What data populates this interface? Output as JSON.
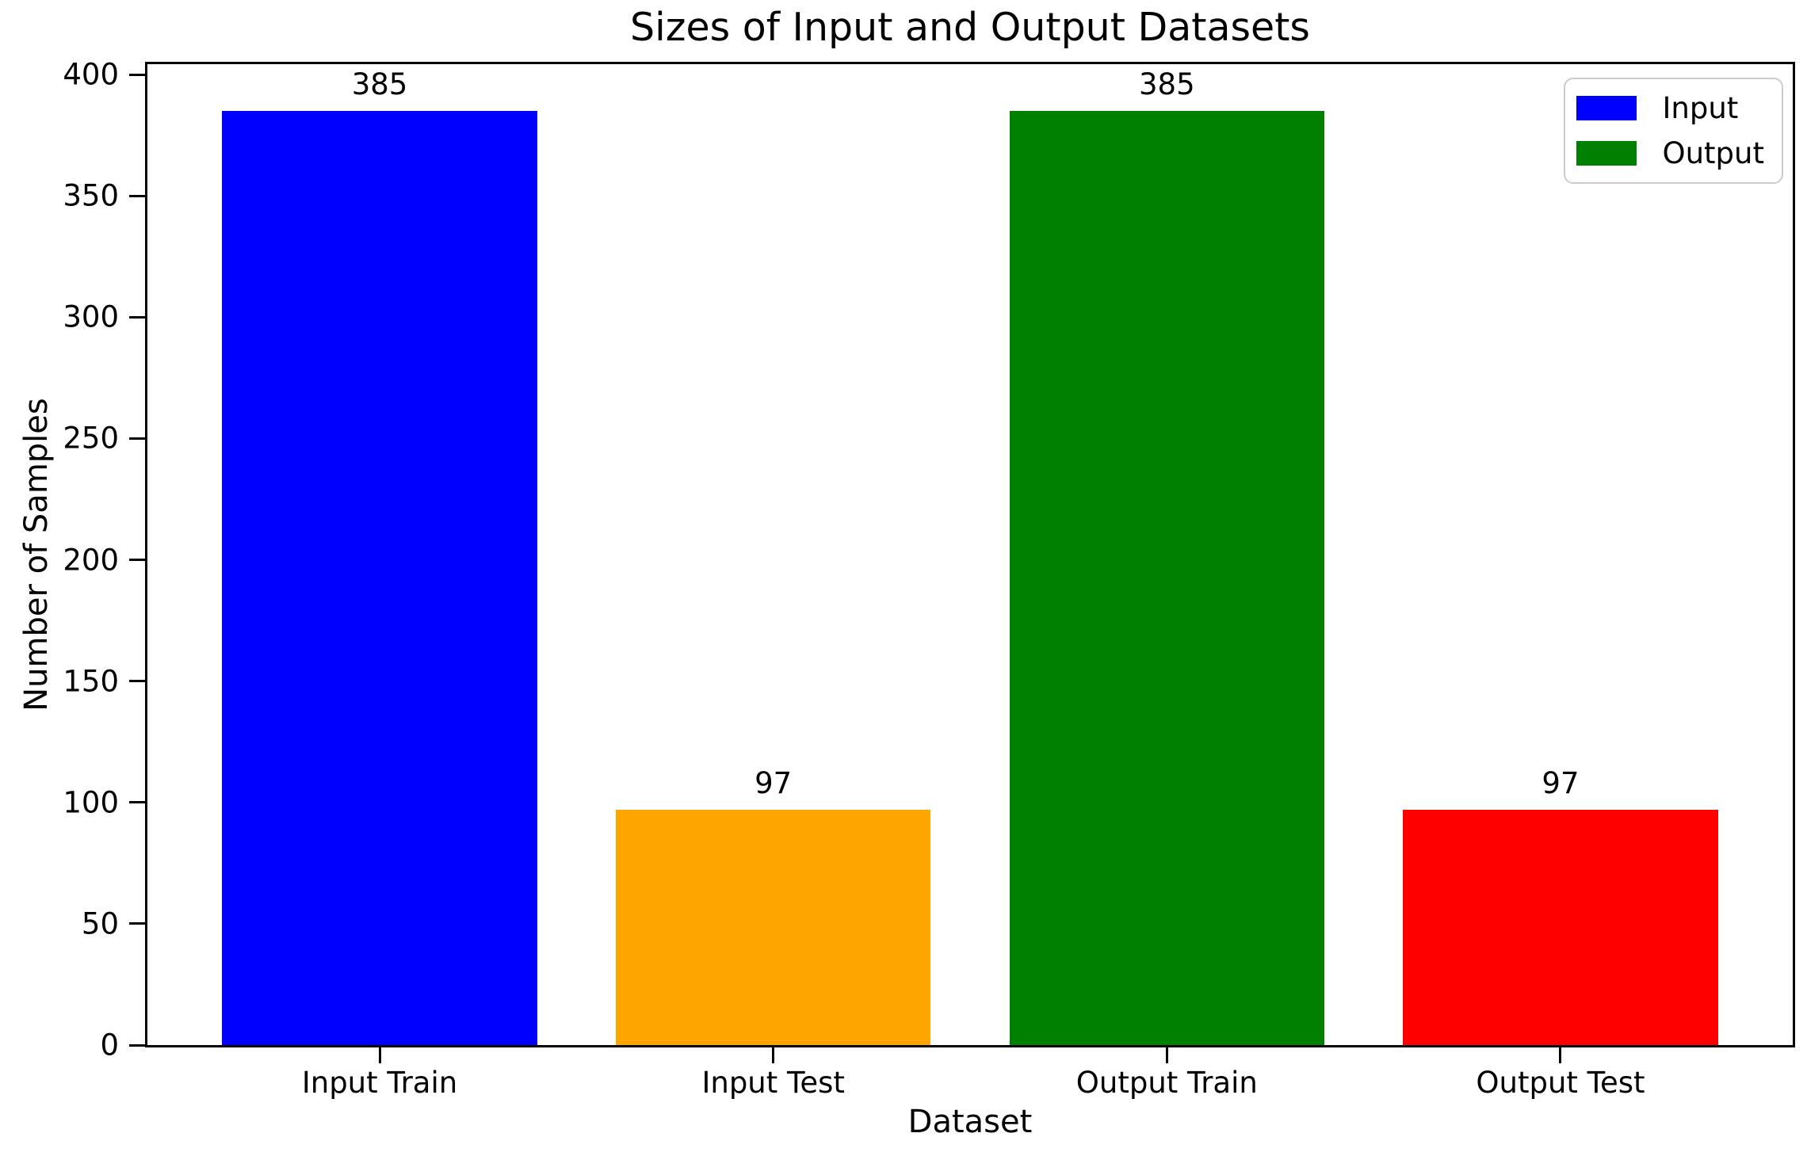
{
  "chart_data": {
    "type": "bar",
    "title": "Sizes of Input and Output Datasets",
    "xlabel": "Dataset",
    "ylabel": "Number of Samples",
    "categories": [
      "Input Train",
      "Input Test",
      "Output Train",
      "Output Test"
    ],
    "values": [
      385,
      97,
      385,
      97
    ],
    "bar_value_labels": [
      "385",
      "97",
      "385",
      "97"
    ],
    "bar_colors": [
      "#0000ff",
      "#ffa500",
      "#008000",
      "#ff0000"
    ],
    "ylim": [
      0,
      404.25
    ],
    "yticks": [
      0,
      50,
      100,
      150,
      200,
      250,
      300,
      350,
      400
    ],
    "xlim": [
      -0.59,
      3.59
    ],
    "bar_width": 0.8,
    "grid": false,
    "legend": {
      "position": "upper-right",
      "entries": [
        {
          "label": "Input",
          "color": "#0000ff"
        },
        {
          "label": "Output",
          "color": "#008000"
        }
      ]
    },
    "colors": {
      "background": "#ffffff",
      "spine": "#000000",
      "text": "#000000",
      "legend_border": "#cccccc"
    }
  }
}
